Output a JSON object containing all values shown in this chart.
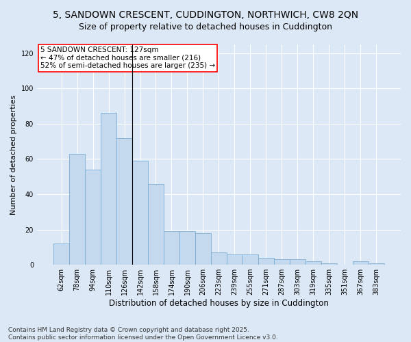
{
  "title": "5, SANDOWN CRESCENT, CUDDINGTON, NORTHWICH, CW8 2QN",
  "subtitle": "Size of property relative to detached houses in Cuddington",
  "xlabel": "Distribution of detached houses by size in Cuddington",
  "ylabel": "Number of detached properties",
  "categories": [
    "62sqm",
    "78sqm",
    "94sqm",
    "110sqm",
    "126sqm",
    "142sqm",
    "158sqm",
    "174sqm",
    "190sqm",
    "206sqm",
    "223sqm",
    "239sqm",
    "255sqm",
    "271sqm",
    "287sqm",
    "303sqm",
    "319sqm",
    "335sqm",
    "351sqm",
    "367sqm",
    "383sqm"
  ],
  "values": [
    12,
    63,
    54,
    86,
    72,
    59,
    46,
    19,
    19,
    18,
    7,
    6,
    6,
    4,
    3,
    3,
    2,
    1,
    0,
    2,
    1
  ],
  "bar_color": "#c5d9ee",
  "bar_edge_color": "#7aadd4",
  "bg_color": "#dce8f5",
  "vline_index": 4,
  "annotation_text": "5 SANDOWN CRESCENT: 127sqm\n← 47% of detached houses are smaller (216)\n52% of semi-detached houses are larger (235) →",
  "annotation_box_color": "white",
  "annotation_box_edge": "red",
  "ylim": [
    0,
    125
  ],
  "yticks": [
    0,
    20,
    40,
    60,
    80,
    100,
    120
  ],
  "footer": "Contains HM Land Registry data © Crown copyright and database right 2025.\nContains public sector information licensed under the Open Government Licence v3.0.",
  "title_fontsize": 10,
  "subtitle_fontsize": 9,
  "xlabel_fontsize": 8.5,
  "ylabel_fontsize": 8,
  "tick_fontsize": 7,
  "annotation_fontsize": 7.5,
  "footer_fontsize": 6.5
}
